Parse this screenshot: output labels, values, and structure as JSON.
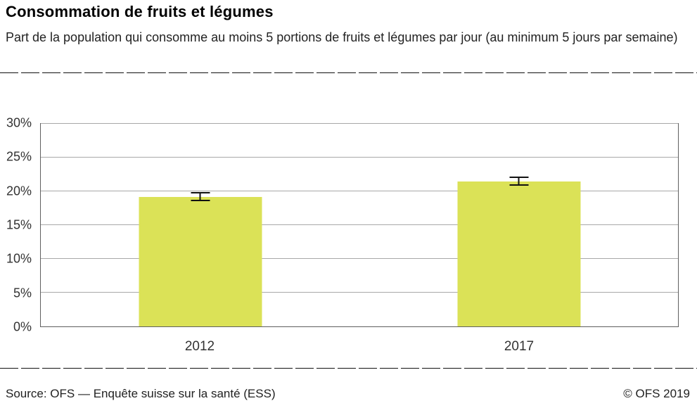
{
  "header": {
    "title": "Consommation de fruits et légumes",
    "subtitle": "Part de la population qui consomme au moins 5 portions de fruits et légumes par jour (au minimum 5 jours par semaine)"
  },
  "footer": {
    "source": "Source: OFS — Enquête suisse sur la santé (ESS)",
    "copyright": "© OFS 2019"
  },
  "colors": {
    "bar": "#dbe257",
    "grid": "#a8a8a8",
    "plot_border": "#5f5f5f",
    "error_bar": "#111111"
  },
  "chart_data": {
    "type": "bar",
    "title": "Consommation de fruits et légumes",
    "subtitle": "Part de la population qui consomme au moins 5 portions de fruits et légumes par jour (au minimum 5 jours par semaine)",
    "categories": [
      "2012",
      "2017"
    ],
    "values": [
      19.2,
      21.5
    ],
    "error_low": [
      18.5,
      20.8
    ],
    "error_high": [
      19.9,
      22.2
    ],
    "xlabel": "",
    "ylabel": "",
    "ylim": [
      0,
      30
    ],
    "yticks": [
      0,
      5,
      10,
      15,
      20,
      25,
      30
    ],
    "ytick_suffix": "%",
    "grid": true,
    "legend_position": "none",
    "bar_color": "#dbe257"
  }
}
